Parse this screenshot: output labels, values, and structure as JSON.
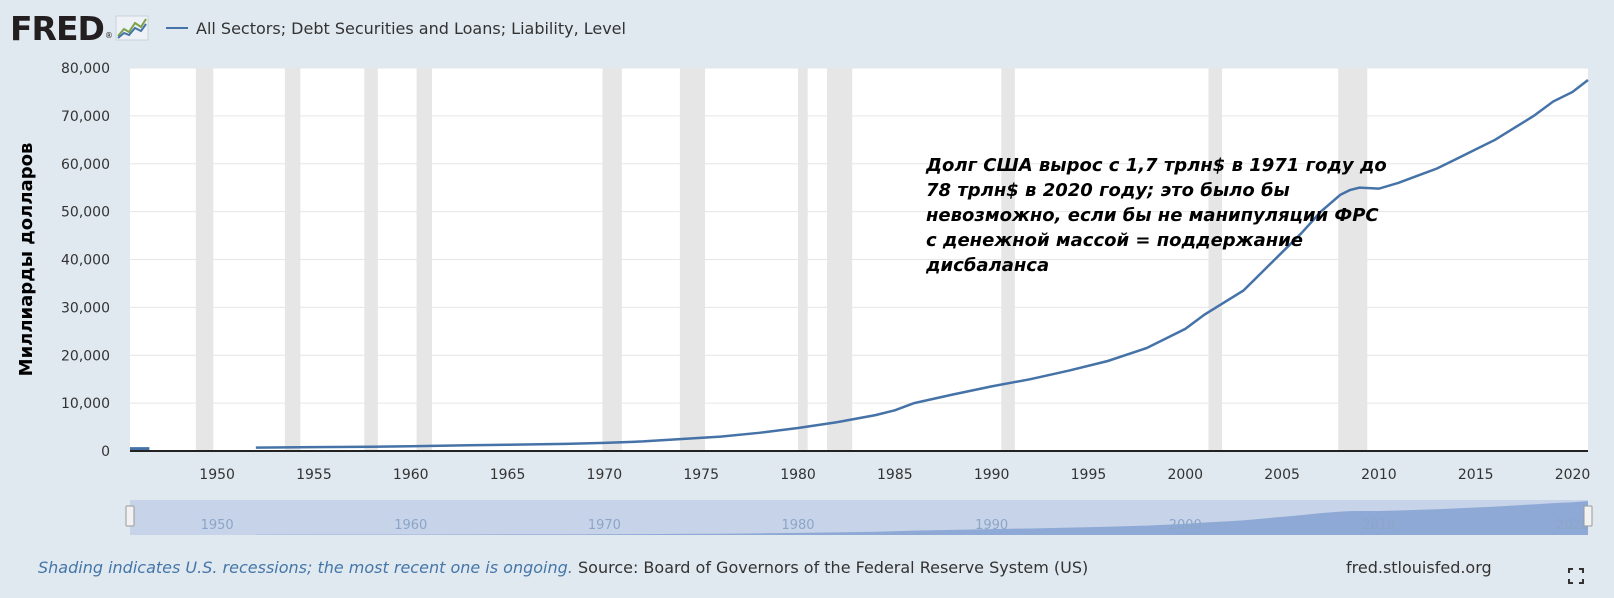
{
  "header": {
    "logo_text": "FRED",
    "logo_reg": "®",
    "legend_label": "All Sectors; Debt Securities and Loans; Liability, Level"
  },
  "annotation": "Долг США вырос с 1,7 трлн$ в 1971 году до\n78 трлн$ в 2020 году; это было бы\nневозможно, если бы не манипуляции ФРС\nс денежной массой = поддержание\nдисбаланса",
  "footer": {
    "note": "Shading indicates U.S. recessions; the most recent one is ongoing.",
    "source": "Source: Board of Governors of the Federal Reserve System (US)",
    "url": "fred.stlouisfed.org"
  },
  "colors": {
    "line": "#4572a7",
    "recession": "#e6e6e6",
    "navigator_fill": "#7f9fcf",
    "navigator_bg": "#c7d3e8"
  },
  "chart_data": {
    "type": "line",
    "ylabel": "Миллиарды долларов",
    "xlabel": "",
    "xlim": [
      1945.5,
      2020.8
    ],
    "ylim": [
      0,
      80000
    ],
    "yticks": [
      0,
      10000,
      20000,
      30000,
      40000,
      50000,
      60000,
      70000,
      80000
    ],
    "ytick_labels": [
      "0",
      "10,000",
      "20,000",
      "30,000",
      "40,000",
      "50,000",
      "60,000",
      "70,000",
      "80,000"
    ],
    "xticks": [
      1950,
      1955,
      1960,
      1965,
      1970,
      1975,
      1980,
      1985,
      1990,
      1995,
      2000,
      2005,
      2010,
      2015,
      2020
    ],
    "grid": true,
    "navigator_ticks": [
      "1950",
      "1960",
      "1970",
      "1980",
      "1990",
      "2000",
      "2010",
      "2020"
    ],
    "recessions": [
      [
        1948.9,
        1949.8
      ],
      [
        1953.5,
        1954.3
      ],
      [
        1957.6,
        1958.3
      ],
      [
        1960.3,
        1961.1
      ],
      [
        1969.9,
        1970.9
      ],
      [
        1973.9,
        1975.2
      ],
      [
        1980.0,
        1980.5
      ],
      [
        1981.5,
        1982.8
      ],
      [
        1990.5,
        1991.2
      ],
      [
        2001.2,
        2001.9
      ],
      [
        2007.9,
        2009.4
      ]
    ],
    "series": [
      {
        "x": [
          1945.5,
          1946.5,
          1952.0,
          1955,
          1958,
          1960,
          1963,
          1965,
          1968,
          1970,
          1972,
          1974,
          1976,
          1978,
          1980,
          1982,
          1984,
          1985,
          1986,
          1988,
          1990,
          1992,
          1994,
          1996,
          1998,
          2000,
          2001,
          2002,
          2003,
          2004,
          2005,
          2006,
          2007,
          2008,
          2008.5,
          2009,
          2010,
          2011,
          2012,
          2013,
          2014,
          2015,
          2016,
          2017,
          2018,
          2019,
          2020,
          2020.8
        ],
        "y": [
          500,
          500,
          700,
          800,
          900,
          1000,
          1200,
          1300,
          1500,
          1700,
          2000,
          2500,
          3000,
          3800,
          4800,
          6000,
          7500,
          8500,
          10000,
          11800,
          13500,
          15000,
          16800,
          18800,
          21500,
          25500,
          28500,
          31000,
          33500,
          37500,
          41500,
          45500,
          50000,
          53500,
          54500,
          55000,
          54800,
          56000,
          57500,
          59000,
          61000,
          63000,
          65000,
          67500,
          70000,
          73000,
          75000,
          77500
        ]
      }
    ]
  }
}
